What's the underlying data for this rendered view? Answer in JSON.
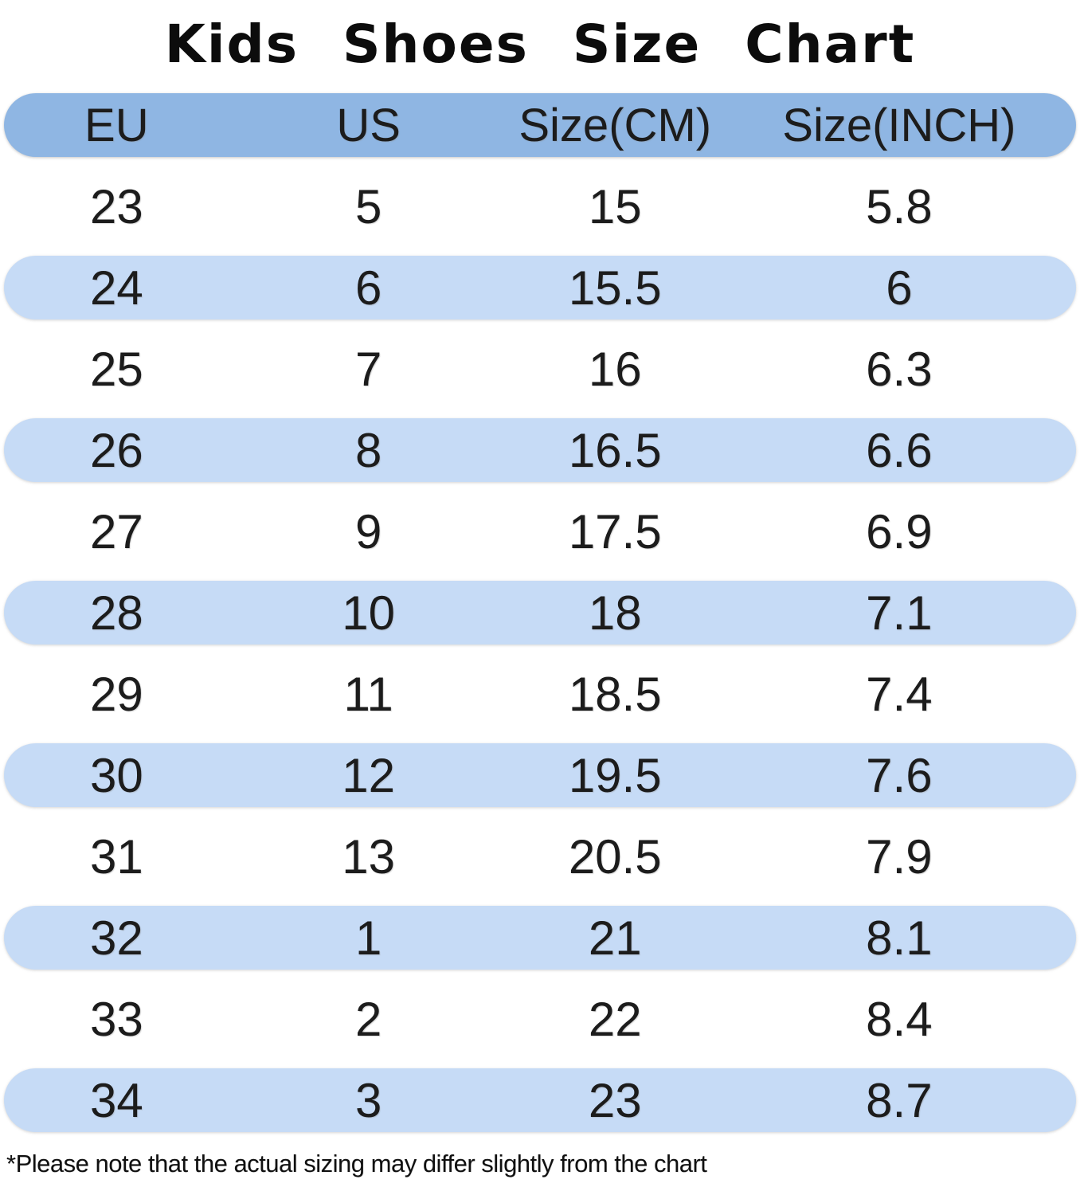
{
  "title": "Kids Shoes Size Chart",
  "footnote": "*Please note that the actual sizing may differ slightly from the chart",
  "colors": {
    "header_bg": "#8FB6E3",
    "row_alt_bg": "#C6DBF6",
    "row_plain_bg": "#FFFFFF",
    "text": "#1C1C1C"
  },
  "chart_data": {
    "type": "table",
    "title": "Kids Shoes Size Chart",
    "columns": [
      "EU",
      "US",
      "Size(CM)",
      "Size(INCH)"
    ],
    "rows": [
      [
        "23",
        "5",
        "15",
        "5.8"
      ],
      [
        "24",
        "6",
        "15.5",
        "6"
      ],
      [
        "25",
        "7",
        "16",
        "6.3"
      ],
      [
        "26",
        "8",
        "16.5",
        "6.6"
      ],
      [
        "27",
        "9",
        "17.5",
        "6.9"
      ],
      [
        "28",
        "10",
        "18",
        "7.1"
      ],
      [
        "29",
        "11",
        "18.5",
        "7.4"
      ],
      [
        "30",
        "12",
        "19.5",
        "7.6"
      ],
      [
        "31",
        "13",
        "20.5",
        "7.9"
      ],
      [
        "32",
        "1",
        "21",
        "8.1"
      ],
      [
        "33",
        "2",
        "22",
        "8.4"
      ],
      [
        "34",
        "3",
        "23",
        "8.7"
      ]
    ]
  }
}
